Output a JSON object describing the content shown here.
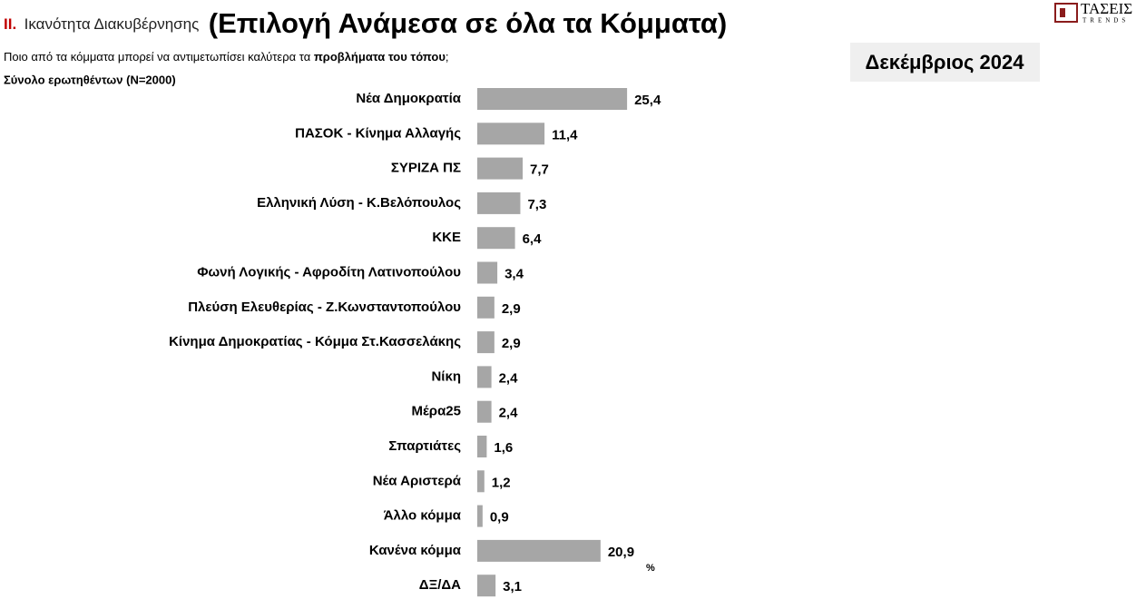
{
  "header": {
    "section": "II.",
    "label": "Ικανότητα Διακυβέρνησης",
    "title": "(Επιλογή Ανάμεσα σε όλα τα Κόμματα)",
    "question": "Ποιο από τα κόμματα μπορεί να αντιμετωπίσει καλύτερα  τα ",
    "question_bold": "προβλήματα του τόπου",
    "question_end": ";",
    "sample": "Σύνολο ερωτηθέντων (N=2000)",
    "date": "Δεκέμβριος 2024",
    "logo": "ΤΑΣΕΙΣ",
    "logo_sub": "TRENDS"
  },
  "chart_data": {
    "type": "bar",
    "orientation": "horizontal",
    "categories": [
      "Νέα Δημοκρατία",
      "ΠΑΣΟΚ - Κίνημα Αλλαγής",
      "ΣΥΡΙΖΑ ΠΣ",
      "Ελληνική Λύση - Κ.Βελόπουλος",
      "ΚΚΕ",
      "Φωνή Λογικής - Αφροδίτη Λατινοπούλου",
      "Πλεύση Ελευθερίας - Ζ.Κωνσταντοπούλου",
      "Κίνημα Δημοκρατίας - Κόμμα Στ.Κασσελάκης",
      "Νίκη",
      "Μέρα25",
      "Σπαρτιάτες",
      "Νέα Αριστερά",
      "Άλλο κόμμα",
      "Κανένα κόμμα",
      "ΔΞ/ΔΑ"
    ],
    "values": [
      25.4,
      11.4,
      7.7,
      7.3,
      6.4,
      3.4,
      2.9,
      2.9,
      2.4,
      2.4,
      1.6,
      1.2,
      0.9,
      20.9,
      3.1
    ],
    "value_labels": [
      "25,4",
      "11,4",
      "7,7",
      "7,3",
      "6,4",
      "3,4",
      "2,9",
      "2,9",
      "2,4",
      "2,4",
      "1,6",
      "1,2",
      "0,9",
      "20,9",
      "3,1"
    ],
    "unit": "%",
    "color": "#a6a6a6"
  }
}
